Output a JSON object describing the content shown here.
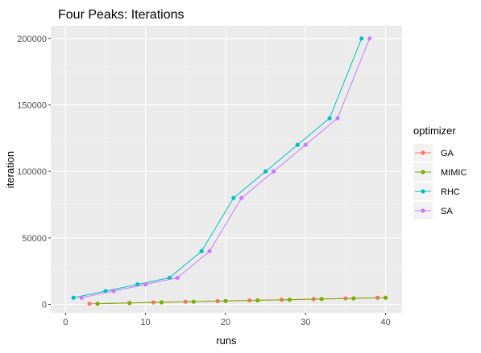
{
  "chart_data": {
    "type": "line",
    "title": "Four Peaks: Iterations",
    "xlabel": "runs",
    "ylabel": "iteration",
    "xlim": [
      0,
      40
    ],
    "ylim": [
      0,
      200000
    ],
    "x_ticks": [
      "0",
      "10",
      "20",
      "30",
      "40"
    ],
    "y_ticks": [
      "0",
      "50000",
      "100000",
      "150000",
      "200000"
    ],
    "grid": true,
    "legend": {
      "title": "optimizer",
      "position": "right",
      "entries": [
        "GA",
        "MIMIC",
        "RHC",
        "SA"
      ]
    },
    "series": [
      {
        "name": "GA",
        "color": "#F8766D",
        "points": [
          [
            3,
            500
          ],
          [
            8,
            1000
          ],
          [
            11,
            1500
          ],
          [
            15,
            2000
          ],
          [
            19,
            2500
          ],
          [
            23,
            3000
          ],
          [
            27,
            3500
          ],
          [
            31,
            4000
          ],
          [
            35,
            4500
          ],
          [
            39,
            5000
          ]
        ]
      },
      {
        "name": "MIMIC",
        "color": "#7CAE00",
        "points": [
          [
            4,
            500
          ],
          [
            8,
            1000
          ],
          [
            12,
            1500
          ],
          [
            16,
            2000
          ],
          [
            20,
            2500
          ],
          [
            24,
            3000
          ],
          [
            28,
            3500
          ],
          [
            32,
            4000
          ],
          [
            36,
            4500
          ],
          [
            40,
            5000
          ]
        ]
      },
      {
        "name": "RHC",
        "color": "#00BFC4",
        "points": [
          [
            1,
            5000
          ],
          [
            5,
            10000
          ],
          [
            9,
            15000
          ],
          [
            13,
            20000
          ],
          [
            17,
            40000
          ],
          [
            21,
            80000
          ],
          [
            25,
            100000
          ],
          [
            29,
            120000
          ],
          [
            33,
            140000
          ],
          [
            37,
            200000
          ]
        ]
      },
      {
        "name": "SA",
        "color": "#C77CFF",
        "points": [
          [
            2,
            5000
          ],
          [
            6,
            10000
          ],
          [
            10,
            15000
          ],
          [
            14,
            20000
          ],
          [
            18,
            40000
          ],
          [
            22,
            80000
          ],
          [
            26,
            100000
          ],
          [
            30,
            120000
          ],
          [
            34,
            140000
          ],
          [
            38,
            200000
          ]
        ]
      }
    ]
  }
}
